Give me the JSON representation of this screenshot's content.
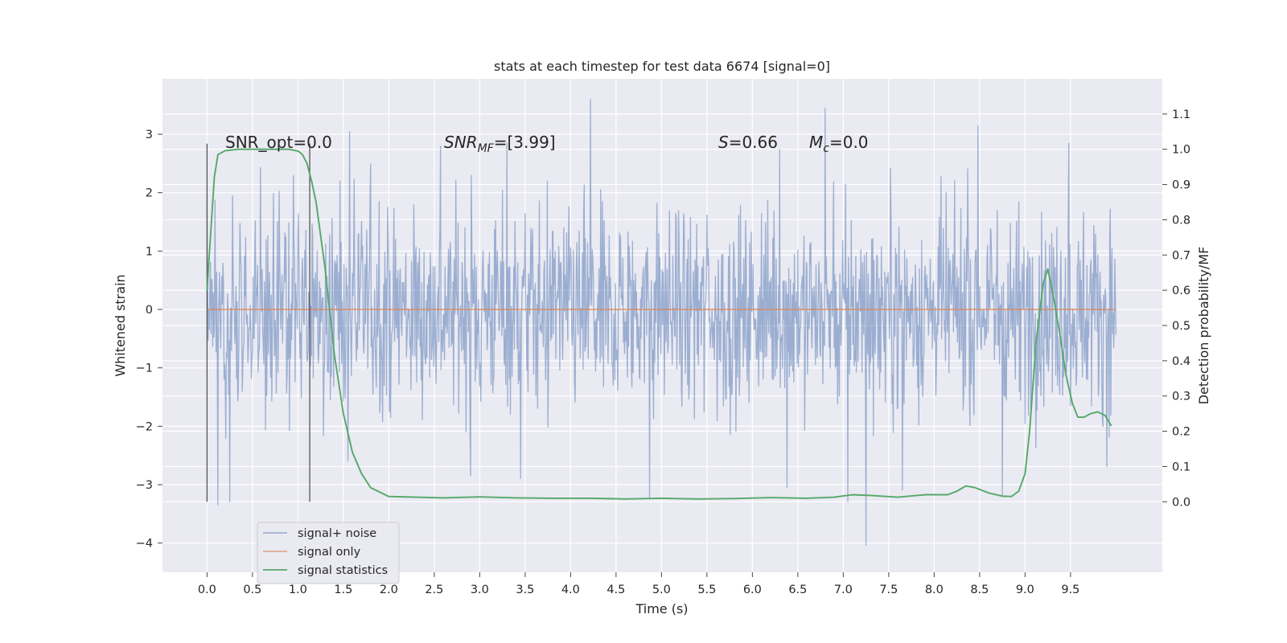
{
  "chart_data": {
    "type": "line",
    "title": "stats at each timestep for test data 6674 [signal=0]",
    "xlabel": "Time (s)",
    "ylabel_left": "Whitened strain",
    "ylabel_right": "Detection probability/MF",
    "xlim": [
      -0.49,
      10.51
    ],
    "ylim_left": [
      -4.5,
      3.95
    ],
    "ylim_right": [
      -0.2,
      1.2
    ],
    "x_ticks": [
      "0.0",
      "0.5",
      "1.0",
      "1.5",
      "2.0",
      "2.5",
      "3.0",
      "3.5",
      "4.0",
      "4.5",
      "5.0",
      "5.5",
      "6.0",
      "6.5",
      "7.0",
      "7.5",
      "8.0",
      "8.5",
      "9.0",
      "9.5"
    ],
    "y_left_ticks": [
      3,
      2,
      1,
      0,
      -1,
      -2,
      -3,
      -4
    ],
    "y_left_tick_labels": [
      "3",
      "2",
      "1",
      "0",
      "−1",
      "−2",
      "−3",
      "−4"
    ],
    "y_right_ticks": [
      "1.1",
      "1.0",
      "0.9",
      "0.8",
      "0.7",
      "0.6",
      "0.5",
      "0.4",
      "0.3",
      "0.2",
      "0.1",
      "0.0"
    ],
    "grid": true,
    "legend_position": "lower-left",
    "annotations": {
      "snr_opt": "SNR_opt=0.0",
      "snr_mf_base": "SNR",
      "snr_mf_sub": "MF",
      "snr_mf_rest": "=[3.99]",
      "s_italic": "S",
      "s_value": "=0.66",
      "mc_base": "M",
      "mc_sub": "c",
      "mc_value": "=0.0"
    },
    "vertical_markers_x": [
      0.0,
      1.13
    ],
    "series": [
      {
        "name": "signal+ noise",
        "color": "#4c72b0",
        "axis": "left",
        "x_range": [
          0.0,
          10.0
        ],
        "envelope_typical": [
          -1.5,
          1.6
        ],
        "extreme_points": [
          {
            "x": 0.0,
            "y": 1.8
          },
          {
            "x": 0.12,
            "y": -3.35
          },
          {
            "x": 0.25,
            "y": -3.3
          },
          {
            "x": 1.57,
            "y": 3.05
          },
          {
            "x": 1.55,
            "y": -2.6
          },
          {
            "x": 2.57,
            "y": 2.8
          },
          {
            "x": 2.9,
            "y": -2.85
          },
          {
            "x": 3.3,
            "y": 2.85
          },
          {
            "x": 3.45,
            "y": -2.9
          },
          {
            "x": 4.22,
            "y": 3.6
          },
          {
            "x": 4.87,
            "y": -3.25
          },
          {
            "x": 6.3,
            "y": 2.75
          },
          {
            "x": 6.38,
            "y": -3.05
          },
          {
            "x": 6.8,
            "y": 3.45
          },
          {
            "x": 7.05,
            "y": -3.3
          },
          {
            "x": 7.25,
            "y": -4.05
          },
          {
            "x": 7.65,
            "y": -3.1
          },
          {
            "x": 8.48,
            "y": 3.15
          },
          {
            "x": 8.75,
            "y": -3.2
          },
          {
            "x": 9.48,
            "y": 2.85
          },
          {
            "x": 9.9,
            "y": -2.7
          }
        ]
      },
      {
        "name": "signal only",
        "color": "#dd8452",
        "axis": "left",
        "x": [
          0.0,
          10.0
        ],
        "y": [
          0.0,
          0.0
        ]
      },
      {
        "name": "signal statistics",
        "color": "#55a868",
        "axis": "right",
        "x": [
          0.0,
          0.08,
          0.12,
          0.2,
          0.35,
          0.5,
          0.7,
          0.9,
          1.0,
          1.05,
          1.1,
          1.15,
          1.2,
          1.3,
          1.4,
          1.5,
          1.6,
          1.7,
          1.8,
          2.0,
          2.3,
          2.6,
          3.0,
          3.4,
          3.8,
          4.2,
          4.6,
          5.0,
          5.4,
          5.8,
          6.2,
          6.6,
          6.9,
          7.1,
          7.3,
          7.6,
          7.9,
          8.15,
          8.25,
          8.35,
          8.45,
          8.6,
          8.75,
          8.85,
          8.93,
          9.0,
          9.05,
          9.12,
          9.2,
          9.25,
          9.3,
          9.38,
          9.45,
          9.52,
          9.58,
          9.65,
          9.72,
          9.8,
          9.88,
          9.95
        ],
        "y": [
          0.6,
          0.92,
          0.985,
          0.996,
          1.0,
          1.0,
          1.0,
          1.0,
          0.995,
          0.985,
          0.96,
          0.91,
          0.85,
          0.66,
          0.42,
          0.25,
          0.14,
          0.08,
          0.04,
          0.015,
          0.013,
          0.011,
          0.014,
          0.011,
          0.01,
          0.01,
          0.008,
          0.01,
          0.008,
          0.009,
          0.012,
          0.01,
          0.013,
          0.02,
          0.018,
          0.013,
          0.02,
          0.02,
          0.03,
          0.045,
          0.04,
          0.025,
          0.016,
          0.015,
          0.03,
          0.08,
          0.2,
          0.45,
          0.62,
          0.66,
          0.6,
          0.48,
          0.36,
          0.28,
          0.24,
          0.24,
          0.25,
          0.255,
          0.245,
          0.215
        ]
      }
    ]
  }
}
